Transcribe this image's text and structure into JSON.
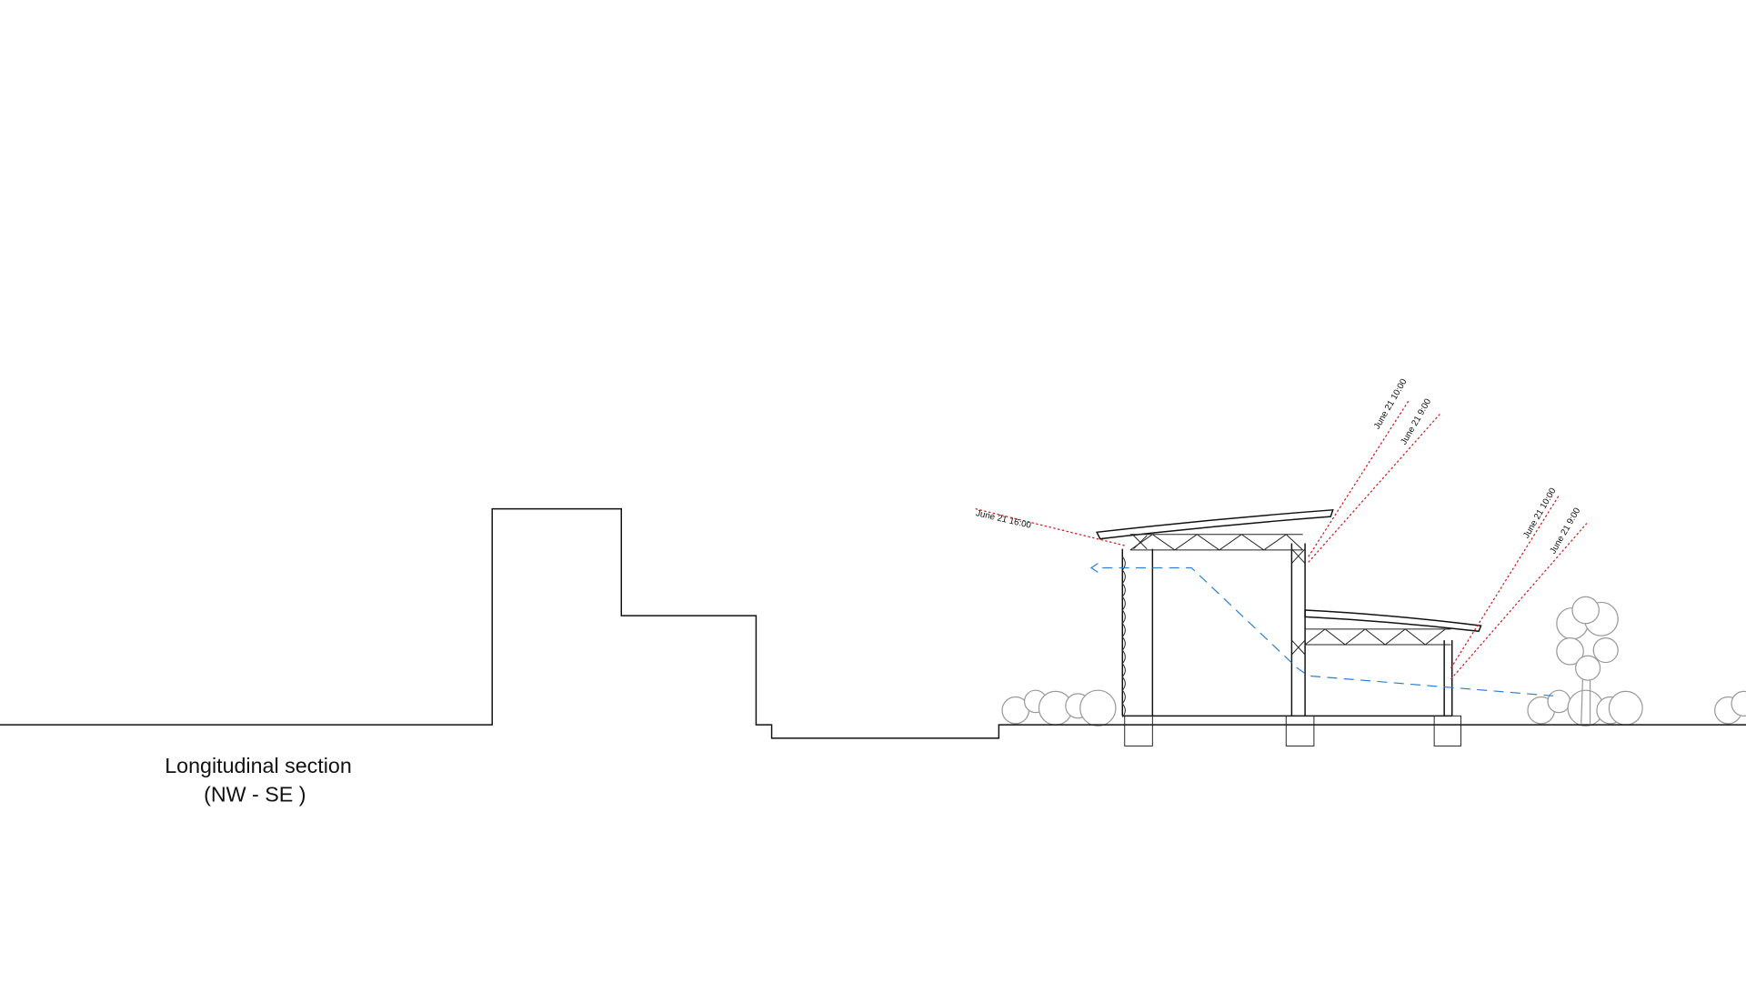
{
  "caption": {
    "line1": "Longitudinal section",
    "line2": "(NW - SE )"
  },
  "sun_labels": {
    "west": "June 21  16:00",
    "upper_10": "June 21  10:00",
    "upper_9": "June 21  9:00",
    "lower_10": "June 21  10:00",
    "lower_9": "June 21  9:00"
  }
}
